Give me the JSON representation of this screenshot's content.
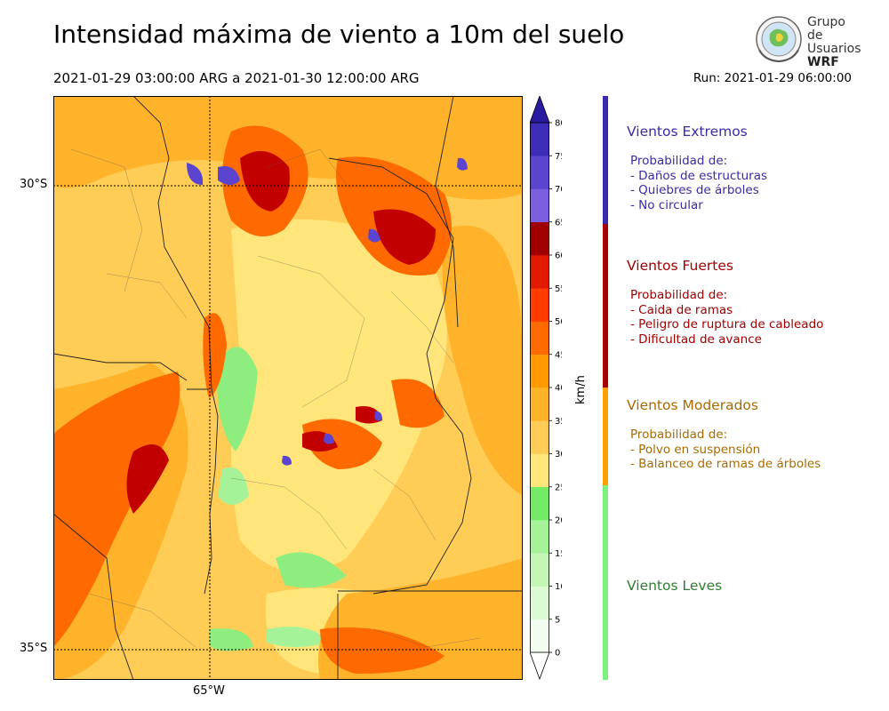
{
  "title": "Intensidad máxima de viento a 10m del suelo",
  "period": "2021-01-29 03:00:00 ARG  a  2021-01-30 12:00:00 ARG",
  "run": "Run: 2021-01-29 06:00:00",
  "logo": {
    "line1": "Grupo de",
    "line2": "Usuarios",
    "line3": "WRF"
  },
  "map": {
    "lat_labels": [
      "30°S",
      "35°S"
    ],
    "lon_labels": [
      "65°W"
    ]
  },
  "colorbar": {
    "unit": "km/h",
    "ticks": [
      "0",
      "5",
      "10",
      "15",
      "20",
      "25",
      "30",
      "35",
      "40",
      "45",
      "50",
      "55",
      "60",
      "65",
      "70",
      "75",
      "80"
    ],
    "colors": [
      "#f2fdf0",
      "#dcfbd5",
      "#c4f7b6",
      "#a6f299",
      "#8ded7e",
      "#74ea66",
      "#ffe57a",
      "#ffcd55",
      "#ffb32b",
      "#ff9a00",
      "#ff6a00",
      "#ff3b00",
      "#e21a00",
      "#c30000",
      "#a00000",
      "#7a5fe0",
      "#5a44d0",
      "#3e2bb8"
    ],
    "under_color": "#ffffff",
    "over_color": "#2a1aa0"
  },
  "categories": [
    {
      "title": "Vientos Extremos",
      "probability": "Probabilidad de:",
      "items": [
        "- Daños de estructuras",
        "- Quiebres de árboles",
        "- No circular"
      ],
      "text_color": "#3a2aa8",
      "bar_color": "#3a2ab0"
    },
    {
      "title": "Vientos Fuertes",
      "probability": "Probabilidad de:",
      "items": [
        "- Caida de ramas",
        "- Peligro de ruptura de cableado",
        "- Dificultad de avance"
      ],
      "text_color": "#a00000",
      "bar_color": "#a80000"
    },
    {
      "title": "Vientos Moderados",
      "probability": "Probabilidad de:",
      "items": [
        "- Polvo en suspensión",
        "- Balanceo de ramas de árboles"
      ],
      "text_color": "#a86a00",
      "bar_color": "#ff9f00"
    },
    {
      "title": "Vientos Leves",
      "probability": "",
      "items": [],
      "text_color": "#2e7d2e",
      "bar_color": "#7ef27e"
    }
  ]
}
